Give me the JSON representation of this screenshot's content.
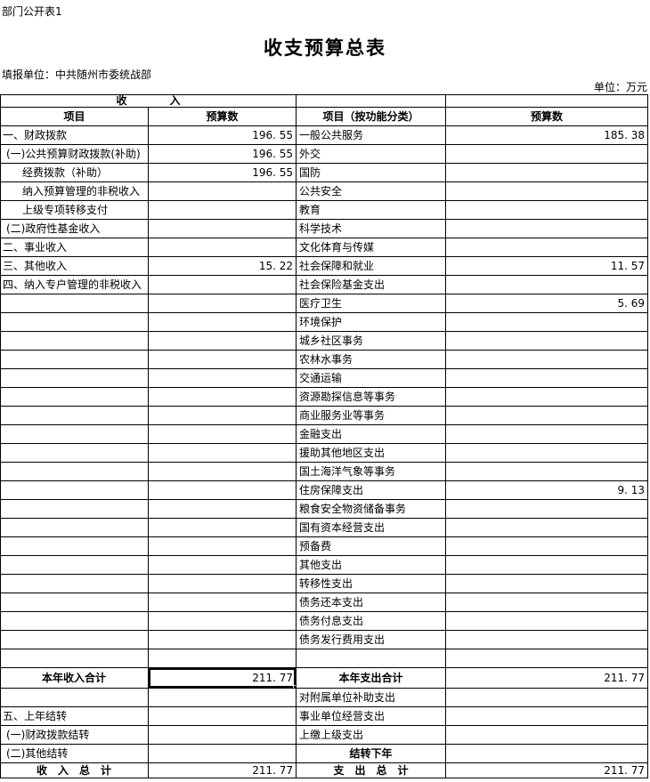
{
  "page": {
    "doc_label": "部门公开表1",
    "title": "收支预算总表",
    "report_unit": "填报单位：中共随州市委统战部",
    "unit_note": "单位：万元"
  },
  "table": {
    "group_header": "收　　　　入",
    "columns": [
      "项目",
      "预算数",
      "项目（按功能分类）",
      "预算数"
    ],
    "rows": [
      {
        "item": "一、财政拨款",
        "indent": 0,
        "budget": "196. 55",
        "func": "一般公共服务",
        "func_budget": "185. 38"
      },
      {
        "item": "(一)公共预算财政拨款(补助)",
        "indent": 1,
        "budget": "196. 55",
        "func": "外交",
        "func_budget": ""
      },
      {
        "item": "经费拨款（补助）",
        "indent": 2,
        "budget": "196. 55",
        "func": "国防",
        "func_budget": ""
      },
      {
        "item": "纳入预算管理的非税收入",
        "indent": 2,
        "budget": "",
        "func": "公共安全",
        "func_budget": ""
      },
      {
        "item": "上级专项转移支付",
        "indent": 2,
        "budget": "",
        "func": "教育",
        "func_budget": ""
      },
      {
        "item": "(二)政府性基金收入",
        "indent": 1,
        "budget": "",
        "func": "科学技术",
        "func_budget": ""
      },
      {
        "item": "二、事业收入",
        "indent": 0,
        "budget": "",
        "func": "文化体育与传媒",
        "func_budget": ""
      },
      {
        "item": "三、其他收入",
        "indent": 0,
        "budget": "15. 22",
        "func": "社会保障和就业",
        "func_budget": "11. 57"
      },
      {
        "item": "四、纳入专户管理的非税收入",
        "indent": 0,
        "budget": "",
        "func": "社会保险基金支出",
        "func_budget": ""
      },
      {
        "item": "",
        "budget": "",
        "func": "医疗卫生",
        "func_budget": "5. 69"
      },
      {
        "item": "",
        "budget": "",
        "func": "环境保护",
        "func_budget": ""
      },
      {
        "item": "",
        "budget": "",
        "func": "城乡社区事务",
        "func_budget": ""
      },
      {
        "item": "",
        "budget": "",
        "func": "农林水事务",
        "func_budget": ""
      },
      {
        "item": "",
        "budget": "",
        "func": "交通运输",
        "func_budget": ""
      },
      {
        "item": "",
        "budget": "",
        "func": "资源勘探信息等事务",
        "func_budget": ""
      },
      {
        "item": "",
        "budget": "",
        "func": "商业服务业等事务",
        "func_budget": ""
      },
      {
        "item": "",
        "budget": "",
        "func": "金融支出",
        "func_budget": ""
      },
      {
        "item": "",
        "budget": "",
        "func": "援助其他地区支出",
        "func_budget": ""
      },
      {
        "item": "",
        "budget": "",
        "func": "国土海洋气象等事务",
        "func_budget": ""
      },
      {
        "item": "",
        "budget": "",
        "func": "住房保障支出",
        "func_budget": "9. 13"
      },
      {
        "item": "",
        "budget": "",
        "func": "粮食安全物资储备事务",
        "func_budget": ""
      },
      {
        "item": "",
        "budget": "",
        "func": "国有资本经营支出",
        "func_budget": ""
      },
      {
        "item": "",
        "budget": "",
        "func": "预备费",
        "func_budget": ""
      },
      {
        "item": "",
        "budget": "",
        "func": "其他支出",
        "func_budget": ""
      },
      {
        "item": "",
        "budget": "",
        "func": "转移性支出",
        "func_budget": ""
      },
      {
        "item": "",
        "budget": "",
        "func": "债务还本支出",
        "func_budget": ""
      },
      {
        "item": "",
        "budget": "",
        "func": "债务付息支出",
        "func_budget": ""
      },
      {
        "item": "",
        "budget": "",
        "func": "债务发行费用支出",
        "func_budget": ""
      },
      {
        "item": "",
        "budget": "",
        "func": "",
        "func_budget": ""
      },
      {
        "item": "本年收入合计",
        "item_style": "total",
        "budget": "211. 77",
        "selected": true,
        "func": "本年支出合计",
        "func_style": "total",
        "func_budget": "211. 77",
        "row_class": "row-total-year"
      },
      {
        "item": "",
        "budget": "",
        "func": "对附属单位补助支出",
        "func_budget": ""
      },
      {
        "item": "五、上年结转",
        "indent": 0,
        "budget": "",
        "func": "事业单位经营支出",
        "func_budget": ""
      },
      {
        "item": "(一)财政拨款结转",
        "indent": 1,
        "budget": "",
        "func": "上缴上级支出",
        "func_budget": ""
      },
      {
        "item": "(二)其他结转",
        "indent": 1,
        "budget": "",
        "func": "结转下年",
        "func_style": "total",
        "func_budget": ""
      },
      {
        "item": "收　入　总　计",
        "item_style": "total",
        "budget": "211. 77",
        "func": "支　出　总　计",
        "func_style": "total",
        "func_budget": "211. 77",
        "row_class": "row-grand"
      }
    ]
  }
}
